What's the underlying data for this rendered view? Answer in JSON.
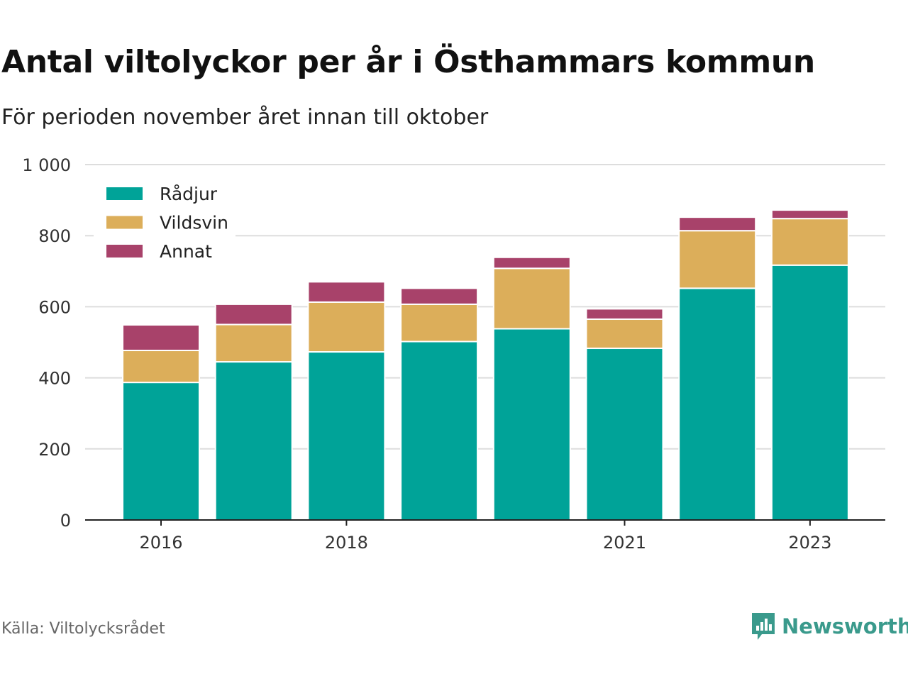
{
  "title": "Antal viltolyckor per år i Östhammars kommun",
  "subtitle": "För perioden november året innan till oktober",
  "source": "Källa: Viltolycksrådet",
  "brand": {
    "name": "Newsworthy",
    "icon": "newsworthy-logo-icon",
    "color": "#3a9a8c"
  },
  "chart_data": {
    "type": "bar",
    "stacked": true,
    "title": "Antal viltolyckor per år i Östhammars kommun",
    "subtitle": "För perioden november året innan till oktober",
    "categories": [
      "2016",
      "2017",
      "2018",
      "2019",
      "2020",
      "2021",
      "2022",
      "2023"
    ],
    "x_tick_labels": [
      "2016",
      "",
      "2018",
      "",
      "",
      "2021",
      "",
      "2023"
    ],
    "y_ticks": [
      "0",
      "200",
      "400",
      "600",
      "800",
      "1 000"
    ],
    "y_tick_values": [
      0,
      200,
      400,
      600,
      800,
      1000
    ],
    "ylim": [
      0,
      1000
    ],
    "grid": true,
    "legend_position": "top-left",
    "series": [
      {
        "name": "Rådjur",
        "color": "#00a398",
        "values": [
          387,
          445,
          473,
          502,
          538,
          483,
          652,
          717
        ]
      },
      {
        "name": "Vildsvin",
        "color": "#dcae5a",
        "values": [
          90,
          105,
          140,
          105,
          170,
          82,
          162,
          131
        ]
      },
      {
        "name": "Annat",
        "color": "#a8426a",
        "values": [
          72,
          57,
          57,
          45,
          31,
          29,
          38,
          24
        ]
      }
    ]
  }
}
